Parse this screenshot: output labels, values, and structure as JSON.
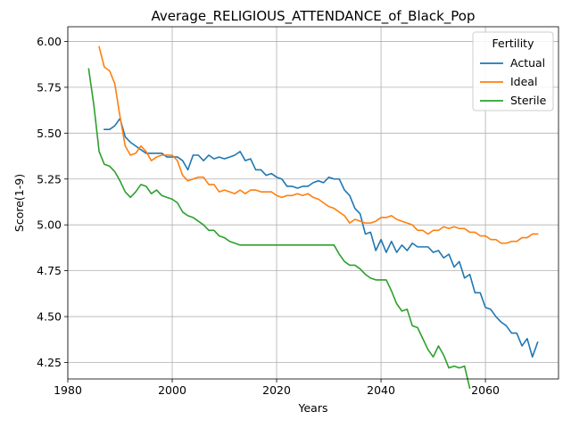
{
  "chart_data": {
    "type": "line",
    "title": "Average_RELIGIOUS_ATTENDANCE_of_Black_Pop",
    "xlabel": "Years",
    "ylabel": "Score(1-9)",
    "xlim": [
      1980,
      2074
    ],
    "ylim": [
      4.16,
      6.08
    ],
    "xticks": [
      1980,
      2000,
      2020,
      2040,
      2060
    ],
    "yticks": [
      4.25,
      4.5,
      4.75,
      5.0,
      5.25,
      5.5,
      5.75,
      6.0
    ],
    "xtick_labels": [
      "1980",
      "2000",
      "2020",
      "2040",
      "2060"
    ],
    "ytick_labels": [
      "4.25",
      "4.50",
      "4.75",
      "5.00",
      "5.25",
      "5.50",
      "5.75",
      "6.00"
    ],
    "grid": true,
    "legend": {
      "title": "Fertility",
      "position": "top-right"
    },
    "series": [
      {
        "name": "Actual",
        "color": "#1f77b4",
        "x": [
          1987,
          1988,
          1989,
          1990,
          1991,
          1992,
          1993,
          1994,
          1995,
          1996,
          1997,
          1998,
          1999,
          2000,
          2001,
          2002,
          2003,
          2004,
          2005,
          2006,
          2007,
          2008,
          2009,
          2010,
          2011,
          2012,
          2013,
          2014,
          2015,
          2016,
          2017,
          2018,
          2019,
          2020,
          2021,
          2022,
          2023,
          2024,
          2025,
          2026,
          2027,
          2028,
          2029,
          2030,
          2031,
          2032,
          2033,
          2034,
          2035,
          2036,
          2037,
          2038,
          2039,
          2040,
          2041,
          2042,
          2043,
          2044,
          2045,
          2046,
          2047,
          2048,
          2049,
          2050,
          2051,
          2052,
          2053,
          2054,
          2055,
          2056,
          2057,
          2058,
          2059,
          2060,
          2061,
          2062,
          2063,
          2064,
          2065,
          2066,
          2067,
          2068,
          2069,
          2070
        ],
        "values": [
          5.52,
          5.52,
          5.54,
          5.58,
          5.48,
          5.45,
          5.43,
          5.41,
          5.39,
          5.39,
          5.39,
          5.39,
          5.37,
          5.37,
          5.37,
          5.35,
          5.3,
          5.38,
          5.38,
          5.35,
          5.38,
          5.36,
          5.37,
          5.36,
          5.37,
          5.38,
          5.4,
          5.35,
          5.36,
          5.3,
          5.3,
          5.27,
          5.28,
          5.26,
          5.25,
          5.21,
          5.21,
          5.2,
          5.21,
          5.21,
          5.23,
          5.24,
          5.23,
          5.26,
          5.25,
          5.25,
          5.19,
          5.16,
          5.09,
          5.06,
          4.95,
          4.96,
          4.86,
          4.92,
          4.85,
          4.91,
          4.85,
          4.89,
          4.86,
          4.9,
          4.88,
          4.88,
          4.88,
          4.85,
          4.86,
          4.82,
          4.84,
          4.77,
          4.8,
          4.71,
          4.73,
          4.63,
          4.63,
          4.55,
          4.54,
          4.5,
          4.47,
          4.45,
          4.41,
          4.41,
          4.34,
          4.38,
          4.28,
          4.36
        ]
      },
      {
        "name": "Ideal",
        "color": "#ff7f0e",
        "x": [
          1986,
          1987,
          1988,
          1989,
          1990,
          1991,
          1992,
          1993,
          1994,
          1995,
          1996,
          1997,
          1998,
          1999,
          2000,
          2001,
          2002,
          2003,
          2004,
          2005,
          2006,
          2007,
          2008,
          2009,
          2010,
          2011,
          2012,
          2013,
          2014,
          2015,
          2016,
          2017,
          2018,
          2019,
          2020,
          2021,
          2022,
          2023,
          2024,
          2025,
          2026,
          2027,
          2028,
          2029,
          2030,
          2031,
          2032,
          2033,
          2034,
          2035,
          2036,
          2037,
          2038,
          2039,
          2040,
          2041,
          2042,
          2043,
          2044,
          2045,
          2046,
          2047,
          2048,
          2049,
          2050,
          2051,
          2052,
          2053,
          2054,
          2055,
          2056,
          2057,
          2058,
          2059,
          2060,
          2061,
          2062,
          2063,
          2064,
          2065,
          2066,
          2067,
          2068,
          2069,
          2070
        ],
        "values": [
          5.97,
          5.86,
          5.84,
          5.77,
          5.59,
          5.43,
          5.38,
          5.39,
          5.43,
          5.4,
          5.35,
          5.37,
          5.38,
          5.38,
          5.38,
          5.35,
          5.27,
          5.24,
          5.25,
          5.26,
          5.26,
          5.22,
          5.22,
          5.18,
          5.19,
          5.18,
          5.17,
          5.19,
          5.17,
          5.19,
          5.19,
          5.18,
          5.18,
          5.18,
          5.16,
          5.15,
          5.16,
          5.16,
          5.17,
          5.16,
          5.17,
          5.15,
          5.14,
          5.12,
          5.1,
          5.09,
          5.07,
          5.05,
          5.01,
          5.03,
          5.02,
          5.01,
          5.01,
          5.02,
          5.04,
          5.04,
          5.05,
          5.03,
          5.02,
          5.01,
          5.0,
          4.97,
          4.97,
          4.95,
          4.97,
          4.97,
          4.99,
          4.98,
          4.99,
          4.98,
          4.98,
          4.96,
          4.96,
          4.94,
          4.94,
          4.92,
          4.92,
          4.9,
          4.9,
          4.91,
          4.91,
          4.93,
          4.93,
          4.95,
          4.95
        ]
      },
      {
        "name": "Sterile",
        "color": "#2ca02c",
        "x": [
          1984,
          1985,
          1986,
          1987,
          1988,
          1989,
          1990,
          1991,
          1992,
          1993,
          1994,
          1995,
          1996,
          1997,
          1998,
          1999,
          2000,
          2001,
          2002,
          2003,
          2004,
          2005,
          2006,
          2007,
          2008,
          2009,
          2010,
          2011,
          2012,
          2013,
          2014,
          2015,
          2016,
          2017,
          2018,
          2019,
          2020,
          2021,
          2022,
          2023,
          2024,
          2025,
          2026,
          2027,
          2028,
          2029,
          2030,
          2031,
          2032,
          2033,
          2034,
          2035,
          2036,
          2037,
          2038,
          2039,
          2040,
          2041,
          2042,
          2043,
          2044,
          2045,
          2046,
          2047,
          2048,
          2049,
          2050,
          2051,
          2052,
          2053,
          2054,
          2055,
          2056,
          2057
        ],
        "values": [
          5.85,
          5.65,
          5.4,
          5.33,
          5.32,
          5.29,
          5.24,
          5.18,
          5.15,
          5.18,
          5.22,
          5.21,
          5.17,
          5.19,
          5.16,
          5.15,
          5.14,
          5.12,
          5.07,
          5.05,
          5.04,
          5.02,
          5.0,
          4.97,
          4.97,
          4.94,
          4.93,
          4.91,
          4.9,
          4.89,
          4.89,
          4.89,
          4.89,
          4.89,
          4.89,
          4.89,
          4.89,
          4.89,
          4.89,
          4.89,
          4.89,
          4.89,
          4.89,
          4.89,
          4.89,
          4.89,
          4.89,
          4.89,
          4.84,
          4.8,
          4.78,
          4.78,
          4.76,
          4.73,
          4.71,
          4.7,
          4.7,
          4.7,
          4.64,
          4.57,
          4.53,
          4.54,
          4.45,
          4.44,
          4.38,
          4.32,
          4.28,
          4.34,
          4.29,
          4.22,
          4.23,
          4.22,
          4.23,
          4.11
        ]
      }
    ]
  }
}
